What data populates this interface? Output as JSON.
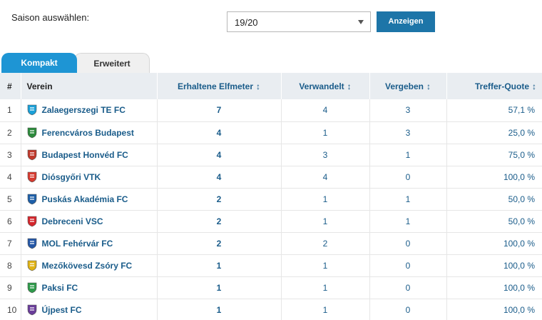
{
  "season": {
    "label": "Saison auswählen:",
    "selected": "19/20",
    "button": "Anzeigen"
  },
  "tabs": [
    {
      "label": "Kompakt",
      "active": true
    },
    {
      "label": "Erweitert",
      "active": false
    }
  ],
  "table": {
    "headers": {
      "num": "#",
      "club": "Verein",
      "received": "Erhaltene Elfmeter",
      "converted": "Verwandelt",
      "missed": "Vergeben",
      "rate": "Treffer-Quote"
    },
    "sort_icon": "↕",
    "rows": [
      {
        "rank": "1",
        "club": "Zalaegerszegi TE FC",
        "crest": "zte-crest-icon",
        "color": "#1aa0d8",
        "received": "7",
        "converted": "4",
        "missed": "3",
        "rate": "57,1 %"
      },
      {
        "rank": "2",
        "club": "Ferencváros Budapest",
        "crest": "ferencvaros-crest-icon",
        "color": "#2c8a3b",
        "received": "4",
        "converted": "1",
        "missed": "3",
        "rate": "25,0 %"
      },
      {
        "rank": "3",
        "club": "Budapest Honvéd FC",
        "crest": "honved-crest-icon",
        "color": "#c0392b",
        "received": "4",
        "converted": "3",
        "missed": "1",
        "rate": "75,0 %"
      },
      {
        "rank": "4",
        "club": "Diósgyőri VTK",
        "crest": "dvtk-crest-icon",
        "color": "#d63a2f",
        "received": "4",
        "converted": "4",
        "missed": "0",
        "rate": "100,0 %"
      },
      {
        "rank": "5",
        "club": "Puskás Akadémia FC",
        "crest": "puskas-crest-icon",
        "color": "#1d5fa8",
        "received": "2",
        "converted": "1",
        "missed": "1",
        "rate": "50,0 %"
      },
      {
        "rank": "6",
        "club": "Debreceni VSC",
        "crest": "dvsc-crest-icon",
        "color": "#d4262c",
        "received": "2",
        "converted": "1",
        "missed": "1",
        "rate": "50,0 %"
      },
      {
        "rank": "7",
        "club": "MOL Fehérvár FC",
        "crest": "fehervar-crest-icon",
        "color": "#2457a6",
        "received": "2",
        "converted": "2",
        "missed": "0",
        "rate": "100,0 %"
      },
      {
        "rank": "8",
        "club": "Mezőkövesd Zsóry FC",
        "crest": "mezokovesd-crest-icon",
        "color": "#e0b315",
        "received": "1",
        "converted": "1",
        "missed": "0",
        "rate": "100,0 %"
      },
      {
        "rank": "9",
        "club": "Paksi FC",
        "crest": "paks-crest-icon",
        "color": "#2e9a4a",
        "received": "1",
        "converted": "1",
        "missed": "0",
        "rate": "100,0 %"
      },
      {
        "rank": "10",
        "club": "Újpest FC",
        "crest": "ujpest-crest-icon",
        "color": "#6a3d9a",
        "received": "1",
        "converted": "1",
        "missed": "0",
        "rate": "100,0 %"
      }
    ]
  }
}
